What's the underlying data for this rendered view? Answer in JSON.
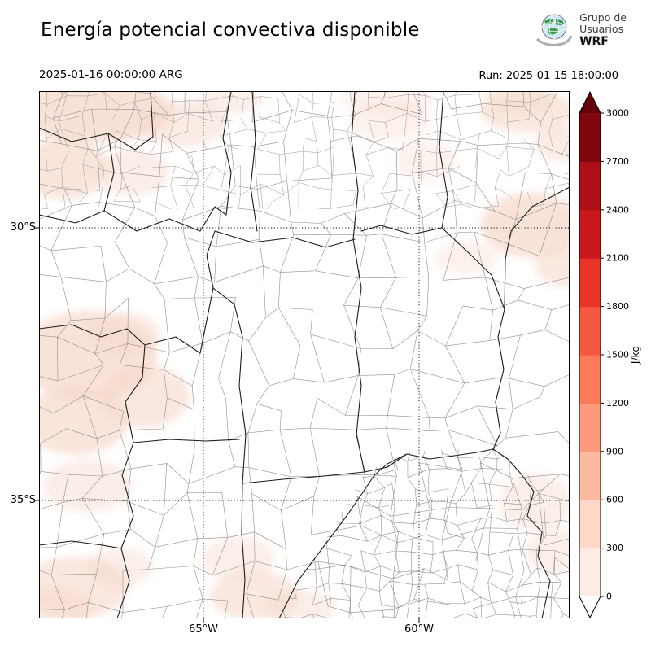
{
  "header": {
    "title": "Energía potencial convectiva disponible",
    "logo": {
      "line1": "Grupo de",
      "line2": "Usuarios",
      "line3": "WRF"
    },
    "valid_time": "2025-01-16 00:00:00 ARG",
    "run_label": "Run: 2025-01-15 18:00:00"
  },
  "map": {
    "lat_ticks": [
      "30°S",
      "35°S"
    ],
    "lon_ticks": [
      "65°W",
      "60°W"
    ],
    "low_fill_color": "#f6d7c9"
  },
  "colorbar": {
    "unit": "J/kg",
    "tick_labels": [
      "0",
      "300",
      "600",
      "900",
      "1200",
      "1500",
      "1800",
      "2100",
      "2400",
      "2700",
      "3000"
    ],
    "segment_colors_low_to_high": [
      "#ffece4",
      "#fdd8c8",
      "#fcbba1",
      "#fc9a7b",
      "#fb7a5a",
      "#f65740",
      "#e83429",
      "#cb181d",
      "#ad1117",
      "#800610"
    ],
    "over_color": "#67000d",
    "under_color": "#ffffff"
  }
}
